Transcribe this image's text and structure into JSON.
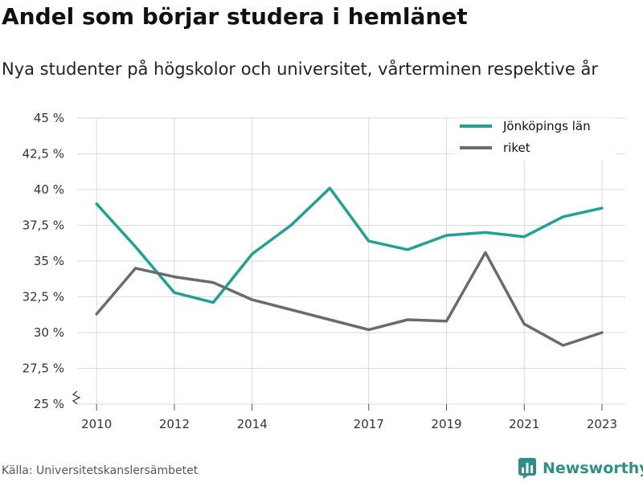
{
  "title": "Andel som börjar studera i hemlänet",
  "subtitle": "Nya studenter på högskolor och universitet, vårterminen respektive år",
  "source": "Källa: Universitetskanslersämbetet",
  "brand": {
    "name": "Newsworthy",
    "icon": "bar-chart-logo-icon",
    "color": "#2f8f86"
  },
  "chart_data": {
    "type": "line",
    "ylim": [
      25,
      45
    ],
    "y_ticks": [
      25,
      27.5,
      30,
      32.5,
      35,
      37.5,
      40,
      42.5,
      45
    ],
    "y_tick_labels": [
      "25 %",
      "27,5 %",
      "30 %",
      "32,5 %",
      "35 %",
      "37,5 %",
      "40 %",
      "42,5 %",
      "45 %"
    ],
    "x_ticks": [
      2010,
      2012,
      2014,
      2017,
      2019,
      2021,
      2023
    ],
    "x_tick_labels": [
      "2010",
      "2012",
      "2014",
      "2017",
      "2019",
      "2021",
      "2023"
    ],
    "xlim": [
      2009.5,
      2023.6
    ],
    "grid": true,
    "legend_position": "top-right",
    "x": [
      2010,
      2011,
      2012,
      2013,
      2014,
      2015,
      2016,
      2017,
      2018,
      2019,
      2020,
      2021,
      2022,
      2023
    ],
    "series": [
      {
        "name": "Jönköpings län",
        "color": "#1ea294",
        "values": [
          39.0,
          36.0,
          32.8,
          32.1,
          35.5,
          37.5,
          40.1,
          36.4,
          35.8,
          36.8,
          37.0,
          36.7,
          38.1,
          38.7
        ]
      },
      {
        "name": "riket",
        "color": "#6b6a72",
        "values": [
          31.3,
          34.5,
          33.9,
          33.5,
          32.3,
          31.6,
          30.9,
          30.2,
          30.9,
          30.8,
          35.6,
          30.6,
          29.1,
          30.0
        ]
      }
    ]
  }
}
